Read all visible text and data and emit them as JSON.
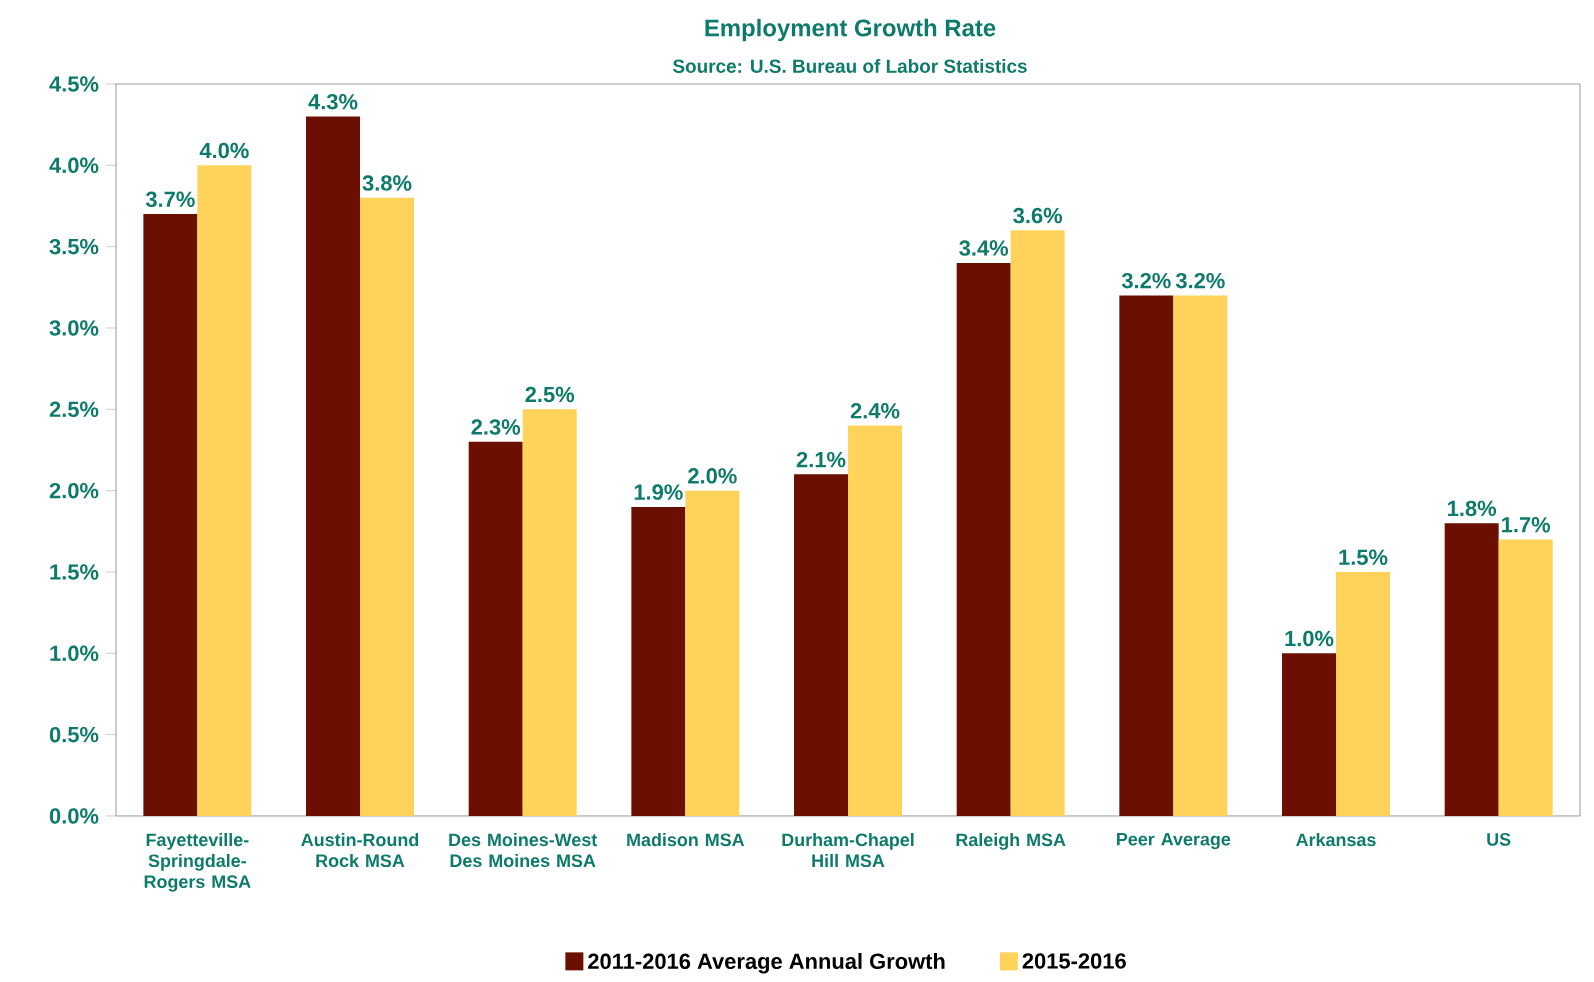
{
  "chart_data": {
    "type": "bar",
    "title": "Employment Growth Rate",
    "subtitle": "Source: U.S. Bureau of Labor Statistics",
    "categories": [
      "Fayetteville-Springdale-Rogers MSA",
      "Austin-Round Rock MSA",
      "Des Moines-West Des Moines MSA",
      "Madison MSA",
      "Durham-Chapel Hill MSA",
      "Raleigh MSA",
      "Peer Average",
      "Arkansas",
      "US"
    ],
    "series": [
      {
        "name": "2011-2016 Average Annual Growth",
        "color": "#6b1000",
        "values": [
          3.7,
          4.3,
          2.3,
          1.9,
          2.1,
          3.4,
          3.2,
          1.0,
          1.8
        ],
        "value_labels": [
          "3.7%",
          "4.3%",
          "2.3%",
          "1.9%",
          "2.1%",
          "3.4%",
          "3.2%",
          "1.0%",
          "1.8%"
        ]
      },
      {
        "name": "2015-2016",
        "color": "#ffd35a",
        "values": [
          4.0,
          3.8,
          2.5,
          2.0,
          2.4,
          3.6,
          3.2,
          1.5,
          1.7
        ],
        "value_labels": [
          "4.0%",
          "3.8%",
          "2.5%",
          "2.0%",
          "2.4%",
          "3.6%",
          "3.2%",
          "1.5%",
          "1.7%"
        ]
      }
    ],
    "ylim": [
      0,
      4.5
    ],
    "yticks": [
      {
        "value": 0,
        "label": "0.0%"
      },
      {
        "value": 0.5,
        "label": "0.5%"
      },
      {
        "value": 1,
        "label": "1.0%"
      },
      {
        "value": 1.5,
        "label": "1.5%"
      },
      {
        "value": 2,
        "label": "2.0%"
      },
      {
        "value": 2.5,
        "label": "2.5%"
      },
      {
        "value": 3,
        "label": "3.0%"
      },
      {
        "value": 3.5,
        "label": "3.5%"
      },
      {
        "value": 4,
        "label": "4.0%"
      },
      {
        "value": 4.5,
        "label": "4.5%"
      }
    ],
    "grid": false,
    "legend": "bottom"
  }
}
